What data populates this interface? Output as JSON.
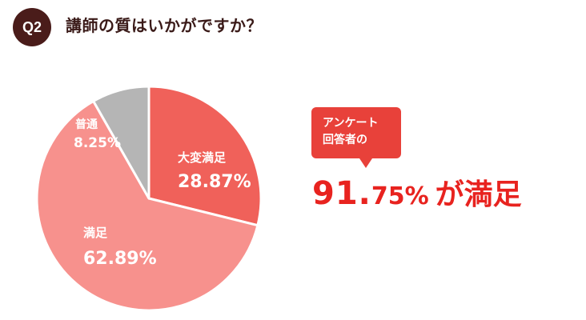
{
  "header": {
    "badge": "Q2",
    "question": "講師の質はいかがですか？"
  },
  "callout": {
    "line1": "アンケート",
    "line2": "回答者の"
  },
  "headline": {
    "int_part": "91.",
    "frac_part": "75%",
    "suffix": "が満足"
  },
  "chart_data": {
    "type": "pie",
    "slices": [
      {
        "label": "大変満足",
        "value": 28.87,
        "value_text": "28.87%",
        "color": "#f0615a",
        "label_color": "#ffffff"
      },
      {
        "label": "満足",
        "value": 62.89,
        "value_text": "62.89%",
        "color": "#f7918d",
        "label_color": "#ffffff"
      },
      {
        "label": "普通",
        "value": 8.25,
        "value_text": "8.25%",
        "color": "#b5b5b5",
        "label_color": "#ffffff"
      }
    ],
    "start": "12 o'clock",
    "direction": "clockwise"
  }
}
